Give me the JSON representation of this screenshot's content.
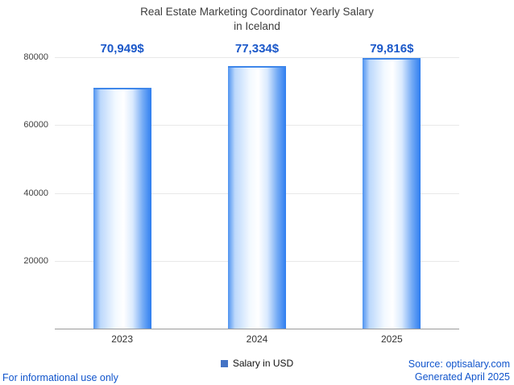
{
  "title": {
    "line1": "Real Estate Marketing Coordinator Yearly Salary",
    "line2": "in Iceland"
  },
  "chart_data": {
    "type": "bar",
    "categories": [
      "2023",
      "2024",
      "2025"
    ],
    "values": [
      70949,
      77334,
      79816
    ],
    "value_labels": [
      "70,949$",
      "77,334$",
      "79,816$"
    ],
    "title": "Real Estate Marketing Coordinator Yearly Salary in Iceland",
    "xlabel": "",
    "ylabel": "",
    "ylim": [
      0,
      80000
    ],
    "yticks": [
      20000,
      40000,
      60000,
      80000
    ],
    "grid": true,
    "legend": [
      "Salary in USD"
    ],
    "legend_position": "bottom"
  },
  "legend": {
    "label": "Salary in USD"
  },
  "footer": {
    "disclaimer": "For informational use only",
    "source": "Source: optisalary.com",
    "generated": "Generated April 2025"
  },
  "colors": {
    "bar_edge_blue": "#2e7ef0",
    "bar_center": "#ffffff",
    "value_label_blue": "#1b58c9",
    "footer_blue": "#1155cc",
    "legend_swatch_blue": "#4473c5",
    "gridline_gray": "#e8e8e8",
    "axis_gray": "#9a9a9a",
    "title_gray": "#3d3d3d"
  }
}
